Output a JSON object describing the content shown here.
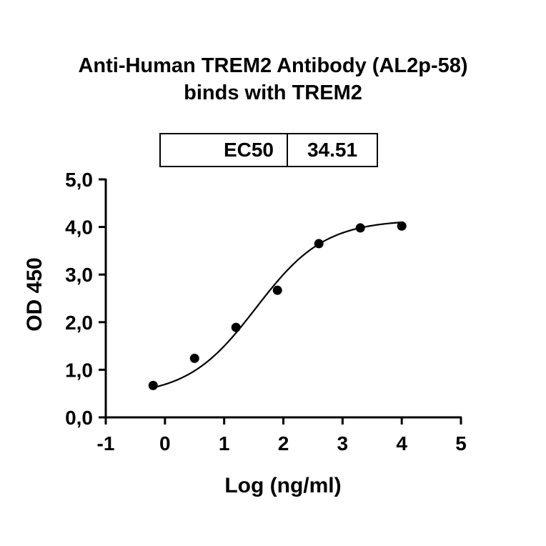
{
  "chart_data": {
    "type": "scatter",
    "title": "Anti-Human TREM2 Antibody (AL2p-58)",
    "subtitle": "binds with TREM2",
    "xlabel": "Log (ng/ml)",
    "ylabel": "OD 450",
    "xlim": [
      -1,
      5
    ],
    "ylim": [
      0,
      5
    ],
    "x_ticks": [
      "-1",
      "0",
      "1",
      "2",
      "3",
      "4",
      "5"
    ],
    "x_tick_values": [
      -1,
      0,
      1,
      2,
      3,
      4,
      5
    ],
    "y_ticks": [
      "0,0",
      "1,0",
      "2,0",
      "3,0",
      "4,0",
      "5,0"
    ],
    "y_tick_values": [
      0,
      1,
      2,
      3,
      4,
      5
    ],
    "grid": false,
    "series": [
      {
        "x": [
          -0.2,
          0.5,
          1.2,
          1.9,
          2.6,
          3.3,
          4.0
        ],
        "y": [
          0.67,
          1.24,
          1.89,
          2.67,
          3.65,
          3.98,
          4.02
        ]
      }
    ],
    "fit_curve": {
      "type": "4PL",
      "bottom": 0.45,
      "top": 4.15,
      "log_ec50": 1.538,
      "hill": 0.75,
      "x_range": [
        -0.2,
        4.0
      ]
    },
    "ec50_table": {
      "label": "EC50",
      "value": "34.51"
    },
    "colors": {
      "points": "#000000",
      "curve": "#000000",
      "axes": "#000000"
    }
  }
}
